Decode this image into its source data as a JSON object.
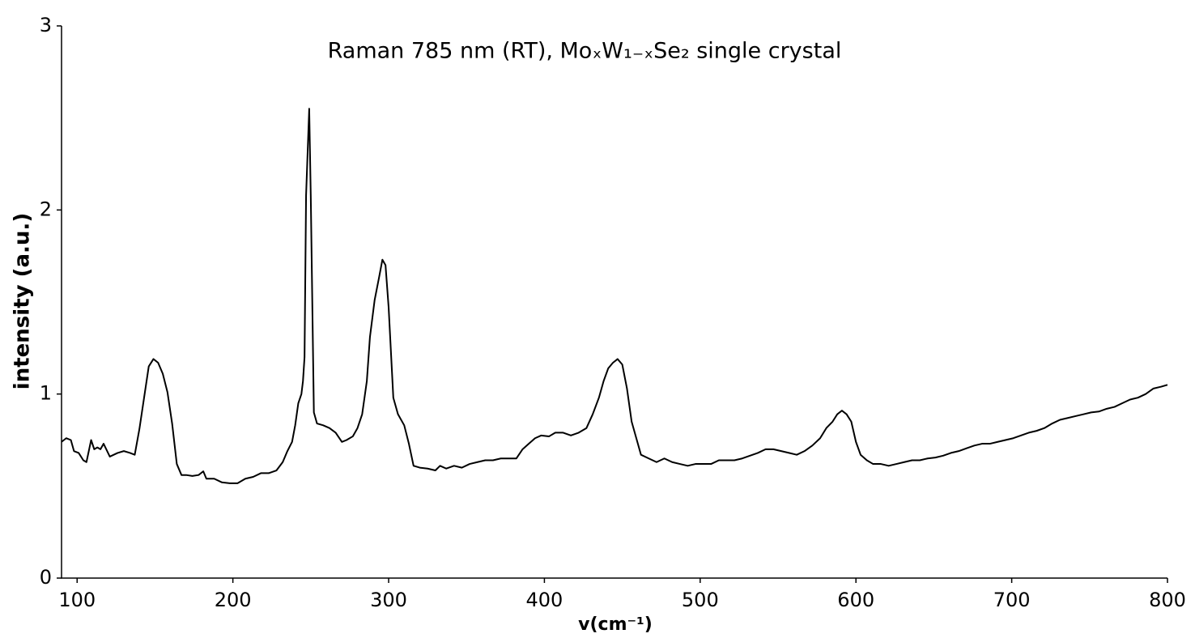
{
  "chart_data": {
    "type": "line",
    "title": "Raman 785 nm (RT), MoₓW₁₋ₓSe₂ single crystal",
    "x_label": "v(cm⁻¹)",
    "y_label": "intensity (a.u.)",
    "color": "#000000",
    "xlim": [
      90,
      800
    ],
    "ylim": [
      0,
      3
    ],
    "xticks": [
      100,
      200,
      300,
      400,
      500,
      600,
      700,
      800
    ],
    "yticks": [
      0,
      1,
      2,
      3
    ],
    "grid": false,
    "x": [
      90,
      93,
      96,
      98,
      101,
      104,
      106,
      109,
      111,
      113,
      115,
      117,
      121,
      126,
      130,
      134,
      137,
      140,
      143,
      146,
      149,
      152,
      155,
      158,
      161,
      164,
      167,
      170,
      174,
      178,
      181,
      183,
      188,
      193,
      198,
      203,
      208,
      213,
      218,
      223,
      228,
      232,
      235,
      238,
      240,
      242,
      244,
      245,
      246,
      247,
      249,
      250,
      252,
      254,
      258,
      262,
      266,
      270,
      273,
      277,
      280,
      283,
      286,
      288,
      291,
      294,
      296,
      298,
      300,
      303,
      306,
      310,
      313,
      316,
      320,
      325,
      330,
      333,
      337,
      342,
      347,
      352,
      357,
      362,
      367,
      372,
      377,
      382,
      386,
      390,
      394,
      398,
      403,
      407,
      412,
      417,
      422,
      427,
      431,
      435,
      438,
      441,
      444,
      447,
      450,
      453,
      456,
      459,
      462,
      467,
      472,
      477,
      482,
      487,
      492,
      497,
      502,
      507,
      512,
      517,
      522,
      527,
      532,
      537,
      542,
      547,
      552,
      557,
      562,
      567,
      572,
      577,
      581,
      585,
      588,
      591,
      594,
      597,
      600,
      603,
      607,
      611,
      616,
      621,
      626,
      631,
      636,
      641,
      646,
      651,
      656,
      661,
      666,
      671,
      676,
      681,
      686,
      691,
      696,
      701,
      706,
      711,
      716,
      721,
      726,
      731,
      736,
      741,
      746,
      751,
      756,
      761,
      766,
      771,
      776,
      781,
      786,
      791,
      796,
      800
    ],
    "values": [
      0.74,
      0.76,
      0.75,
      0.69,
      0.68,
      0.64,
      0.63,
      0.75,
      0.7,
      0.71,
      0.7,
      0.73,
      0.66,
      0.68,
      0.69,
      0.68,
      0.67,
      0.81,
      0.98,
      1.15,
      1.19,
      1.17,
      1.11,
      1.01,
      0.84,
      0.62,
      0.56,
      0.56,
      0.555,
      0.56,
      0.58,
      0.54,
      0.54,
      0.52,
      0.515,
      0.515,
      0.54,
      0.55,
      0.57,
      0.57,
      0.585,
      0.63,
      0.69,
      0.74,
      0.83,
      0.95,
      1.0,
      1.07,
      1.2,
      2.08,
      2.55,
      2.08,
      0.9,
      0.84,
      0.83,
      0.815,
      0.79,
      0.74,
      0.75,
      0.77,
      0.815,
      0.89,
      1.07,
      1.31,
      1.51,
      1.64,
      1.73,
      1.7,
      1.47,
      0.98,
      0.89,
      0.83,
      0.73,
      0.61,
      0.6,
      0.595,
      0.585,
      0.61,
      0.595,
      0.61,
      0.6,
      0.62,
      0.63,
      0.64,
      0.64,
      0.65,
      0.65,
      0.65,
      0.7,
      0.73,
      0.76,
      0.775,
      0.77,
      0.79,
      0.79,
      0.775,
      0.79,
      0.815,
      0.89,
      0.98,
      1.07,
      1.14,
      1.17,
      1.19,
      1.16,
      1.03,
      0.85,
      0.76,
      0.67,
      0.65,
      0.63,
      0.65,
      0.63,
      0.62,
      0.61,
      0.62,
      0.62,
      0.62,
      0.64,
      0.64,
      0.64,
      0.65,
      0.665,
      0.68,
      0.7,
      0.7,
      0.69,
      0.68,
      0.67,
      0.69,
      0.72,
      0.76,
      0.815,
      0.85,
      0.89,
      0.91,
      0.89,
      0.85,
      0.74,
      0.67,
      0.64,
      0.62,
      0.62,
      0.61,
      0.62,
      0.63,
      0.64,
      0.64,
      0.65,
      0.655,
      0.665,
      0.68,
      0.69,
      0.705,
      0.72,
      0.73,
      0.73,
      0.74,
      0.75,
      0.76,
      0.775,
      0.79,
      0.8,
      0.815,
      0.84,
      0.86,
      0.87,
      0.88,
      0.89,
      0.9,
      0.905,
      0.92,
      0.93,
      0.95,
      0.97,
      0.98,
      1.0,
      1.03,
      1.04,
      1.05
    ]
  }
}
